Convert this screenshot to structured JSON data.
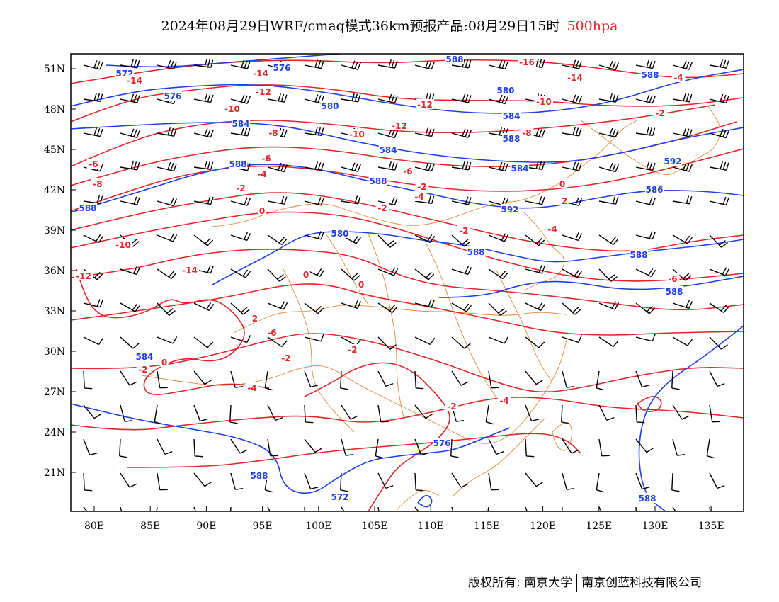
{
  "header": {
    "title": "2024年08月29日WRF/cmaq模式36km预报产品:08月29日15时",
    "level": "500hpa",
    "level_color": "#e0262a"
  },
  "footer": {
    "copyright": "版权所有: 南京大学",
    "company": "南京创蓝科技有限公司"
  },
  "map": {
    "lon_labels": [
      "80E",
      "85E",
      "90E",
      "95E",
      "100E",
      "105E",
      "110E",
      "115E",
      "120E",
      "125E",
      "130E",
      "135E"
    ],
    "lat_labels": [
      "51N",
      "48N",
      "45N",
      "42N",
      "39N",
      "36N",
      "33N",
      "30N",
      "27N",
      "24N",
      "21N"
    ],
    "colors": {
      "height": "#1f3fe6",
      "temperature": "#e0262a",
      "border": "#e8883a",
      "wind": "#000000"
    },
    "height_labels": [
      "572",
      "576",
      "584",
      "588",
      "588",
      "580",
      "576",
      "580",
      "584",
      "588",
      "592",
      "588",
      "584",
      "588",
      "572",
      "588",
      "576",
      "588",
      "580",
      "584",
      "588",
      "584",
      "586",
      "588",
      "588",
      "588",
      "592"
    ],
    "temperature_labels": [
      "-14",
      "-14",
      "-12",
      "-10",
      "-8",
      "-6",
      "-4",
      "-2",
      "0",
      "-2",
      "0",
      "-4",
      "-6",
      "-2",
      "-16",
      "-14",
      "-12",
      "-10",
      "-12",
      "-10",
      "-8",
      "-6",
      "-4",
      "-2",
      "0",
      "2",
      "-2",
      "-4",
      "-6",
      "-8",
      "-10",
      "-12",
      "-14",
      "2",
      "0",
      "-2",
      "-4",
      "-6",
      "0",
      "-2",
      "-2",
      "-2",
      "-4"
    ]
  }
}
